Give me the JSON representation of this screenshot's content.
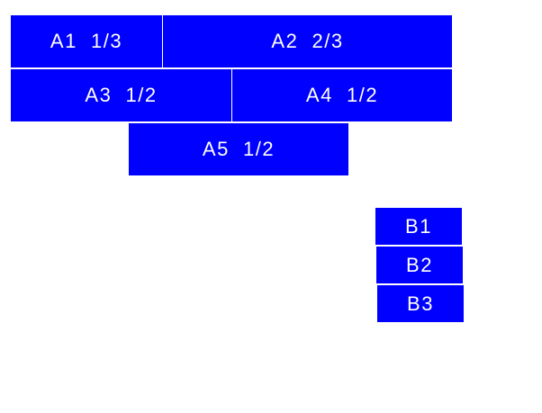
{
  "colors": {
    "box": "#0000ff",
    "text": "#ffffff",
    "background": "#ffffff"
  },
  "group_a": [
    {
      "label": "A1  1/3"
    },
    {
      "label": "A2  2/3"
    },
    {
      "label": "A3  1/2"
    },
    {
      "label": "A4  1/2"
    },
    {
      "label": "A5  1/2"
    }
  ],
  "group_b": [
    {
      "label": "B1"
    },
    {
      "label": "B2"
    },
    {
      "label": "B3"
    }
  ]
}
